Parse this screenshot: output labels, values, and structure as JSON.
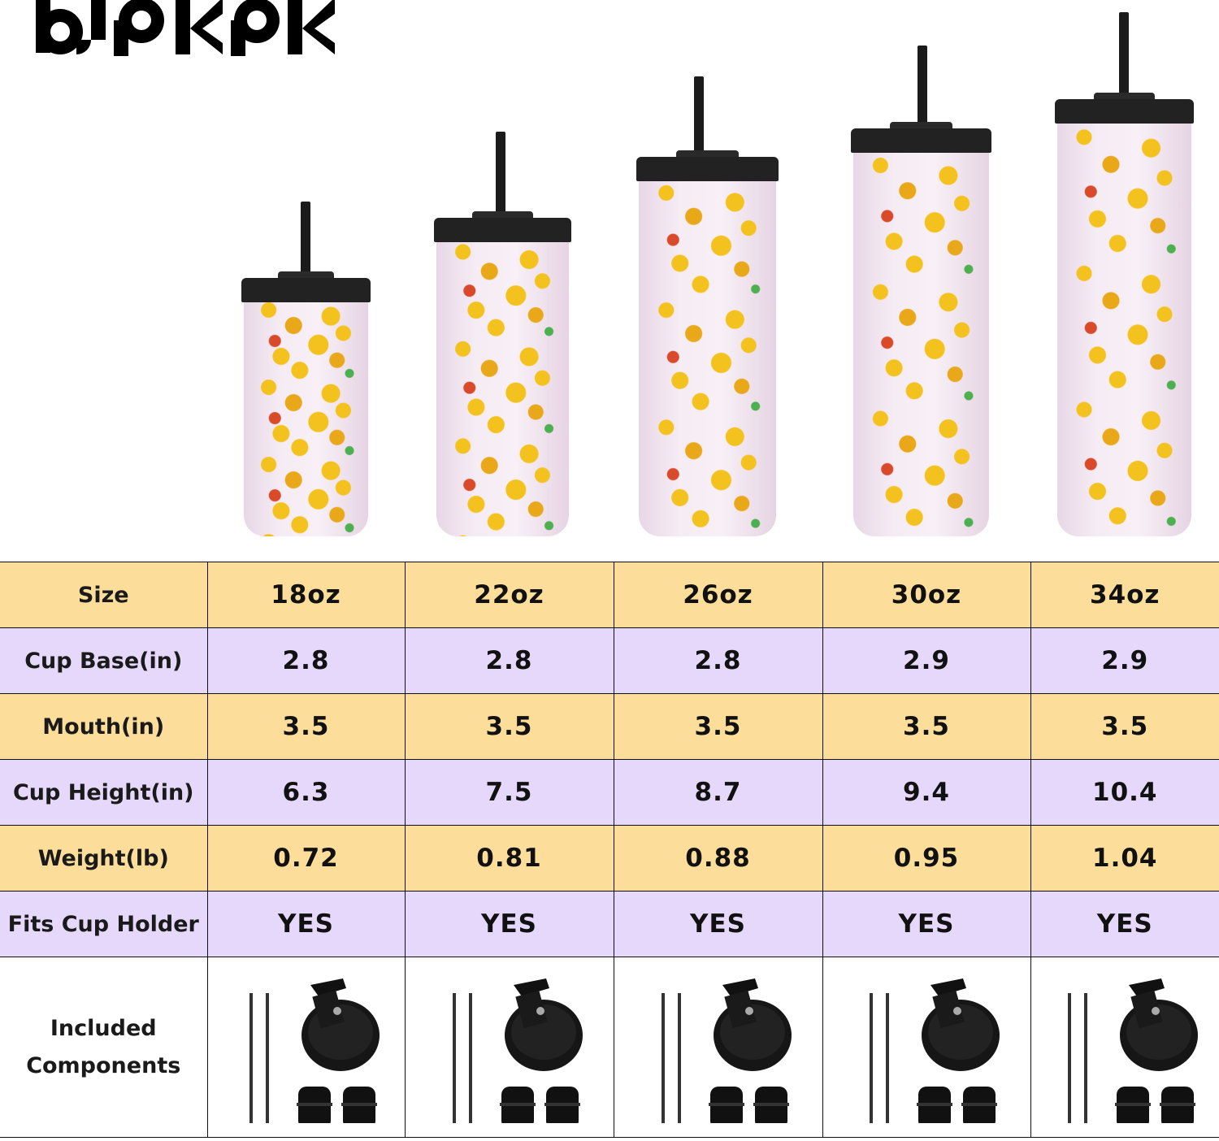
{
  "brand": {
    "logo_text": "bjpkpk"
  },
  "tumblers": [
    {
      "size": "18oz"
    },
    {
      "size": "22oz"
    },
    {
      "size": "26oz"
    },
    {
      "size": "30oz"
    },
    {
      "size": "34oz"
    }
  ],
  "table": {
    "rows": [
      {
        "label": "Size",
        "values": [
          "18oz",
          "22oz",
          "26oz",
          "30oz",
          "34oz"
        ],
        "color": "#fddd9a"
      },
      {
        "label": "Cup Base(in)",
        "values": [
          "2.8",
          "2.8",
          "2.8",
          "2.9",
          "2.9"
        ],
        "color": "#e6d8fb"
      },
      {
        "label": "Mouth(in)",
        "values": [
          "3.5",
          "3.5",
          "3.5",
          "3.5",
          "3.5"
        ],
        "color": "#fddd9a"
      },
      {
        "label": "Cup Height(in)",
        "values": [
          "6.3",
          "7.5",
          "8.7",
          "9.4",
          "10.4"
        ],
        "color": "#e6d8fb"
      },
      {
        "label": "Weight(lb)",
        "values": [
          "0.72",
          "0.81",
          "0.88",
          "0.95",
          "1.04"
        ],
        "color": "#fddd9a"
      },
      {
        "label": "Fits Cup Holder",
        "values": [
          "YES",
          "YES",
          "YES",
          "YES",
          "YES"
        ],
        "color": "#e6d8fb"
      }
    ],
    "components": {
      "label_line1": "Included",
      "label_line2": "Components",
      "items": [
        "straw-icon",
        "lid-icon",
        "straw-stopper-icon"
      ]
    }
  }
}
